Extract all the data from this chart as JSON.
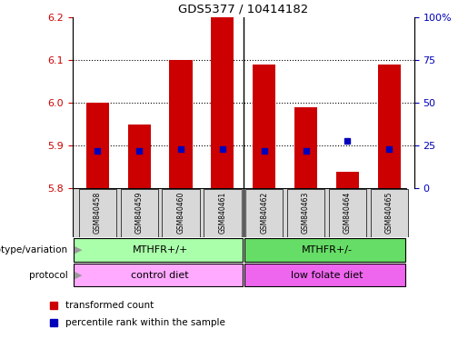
{
  "title": "GDS5377 / 10414182",
  "samples": [
    "GSM840458",
    "GSM840459",
    "GSM840460",
    "GSM840461",
    "GSM840462",
    "GSM840463",
    "GSM840464",
    "GSM840465"
  ],
  "transformed_count": [
    6.0,
    5.95,
    6.1,
    6.2,
    6.09,
    5.99,
    5.84,
    6.09
  ],
  "percentile_rank": [
    22,
    22,
    23,
    23,
    22,
    22,
    28,
    23
  ],
  "ylim": [
    5.8,
    6.2
  ],
  "y_ticks": [
    5.8,
    5.9,
    6.0,
    6.1,
    6.2
  ],
  "percentile_ticks": [
    0,
    25,
    50,
    75,
    100
  ],
  "bar_color": "#cc0000",
  "dot_color": "#0000bb",
  "bar_bottom": 5.8,
  "genotype_labels": [
    "MTHFR+/+",
    "MTHFR+/-"
  ],
  "genotype_color1": "#aaffaa",
  "genotype_color2": "#66dd66",
  "protocol_labels": [
    "control diet",
    "low folate diet"
  ],
  "protocol_color1": "#ffaaff",
  "protocol_color2": "#ee66ee",
  "legend_bar_label": "transformed count",
  "legend_dot_label": "percentile rank within the sample",
  "tick_color_left": "#cc0000",
  "tick_color_right": "#0000bb",
  "label_row_label1": "genotype/variation",
  "label_row_label2": "protocol"
}
